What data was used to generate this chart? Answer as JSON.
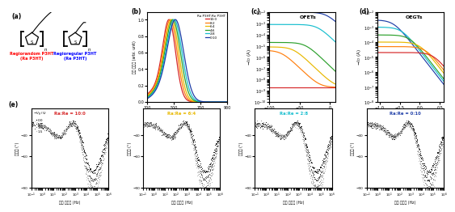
{
  "panel_labels": [
    "(a)",
    "(b)",
    "(c)",
    "(d)",
    "(e)"
  ],
  "blend_ratios": [
    "10:0",
    "8:2",
    "6:4",
    "4:6",
    "2:8",
    "0:10"
  ],
  "blend_colors": [
    "#d62728",
    "#ff7f0e",
    "#e8b800",
    "#2ca02c",
    "#17becf",
    "#1f3fa8"
  ],
  "absorbance_peaks": [
    465,
    475,
    485,
    495,
    505,
    515
  ],
  "absorbance_sigmas": [
    48,
    50,
    52,
    55,
    57,
    60
  ],
  "impedance_titles": [
    "Ra:Re = 10:0",
    "Ra:Re = 6:4",
    "Ra:Re = 2:8",
    "Ra:Re = 0:10"
  ],
  "impedance_title_colors": [
    "#d62728",
    "#e8b800",
    "#17becf",
    "#1f3fa8"
  ],
  "bg_color": "#ffffff"
}
